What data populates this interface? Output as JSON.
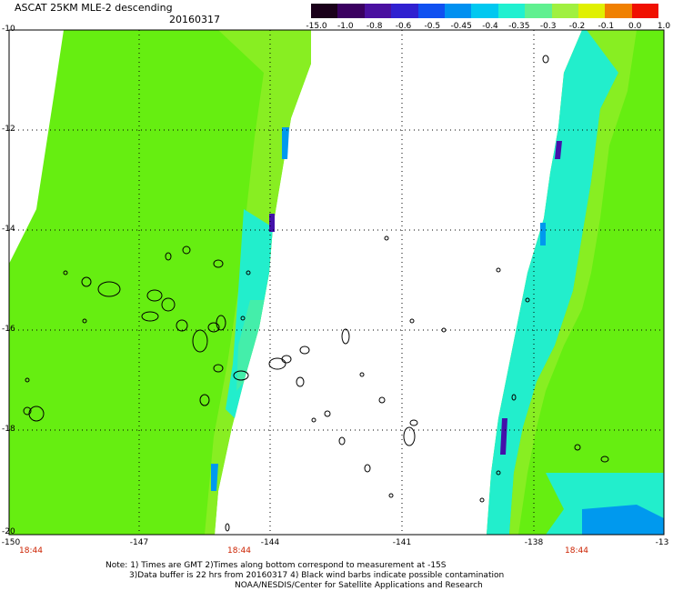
{
  "header": {
    "title": "ASCAT 25KM MLE-2 descending",
    "date": "20160317"
  },
  "colorbar": {
    "labels": [
      "-15.0",
      "-1.0",
      "-0.8",
      "-0.6",
      "-0.5",
      "-0.45",
      "-0.4",
      "-0.35",
      "-0.3",
      "-0.2",
      "-0.1",
      "0.0",
      "1.0"
    ],
    "colors": [
      "#1a001a",
      "#3a0060",
      "#4a10a0",
      "#3020d0",
      "#1050f0",
      "#0090f0",
      "#00c8f0",
      "#20f0d0",
      "#60f090",
      "#a0f040",
      "#e0f000",
      "#f08000",
      "#f01000"
    ]
  },
  "axes": {
    "y_ticks": [
      "-10",
      "-12",
      "-14",
      "-16",
      "-18",
      "-20"
    ],
    "x_ticks": [
      "-150",
      "-147",
      "-144",
      "-141",
      "-138",
      "-13"
    ],
    "time_labels": [
      "18:44",
      "18:44",
      "18:44"
    ]
  },
  "notes": {
    "line1": "Note: 1) Times are GMT 2)Times along bottom correspond to measurement at -15S",
    "line2": "3)Data buffer is 22 hrs from 20160317 4) Black wind barbs indicate possible contamination",
    "line3": "NOAA/NESDIS/Center for Satellite Applications and Research"
  },
  "map_colors": {
    "green_main": "#66ee11",
    "green_light": "#88ee22",
    "cyan": "#22eecc",
    "cyan_light": "#44eeaa",
    "blue": "#0099ee",
    "purple": "#4411aa"
  }
}
